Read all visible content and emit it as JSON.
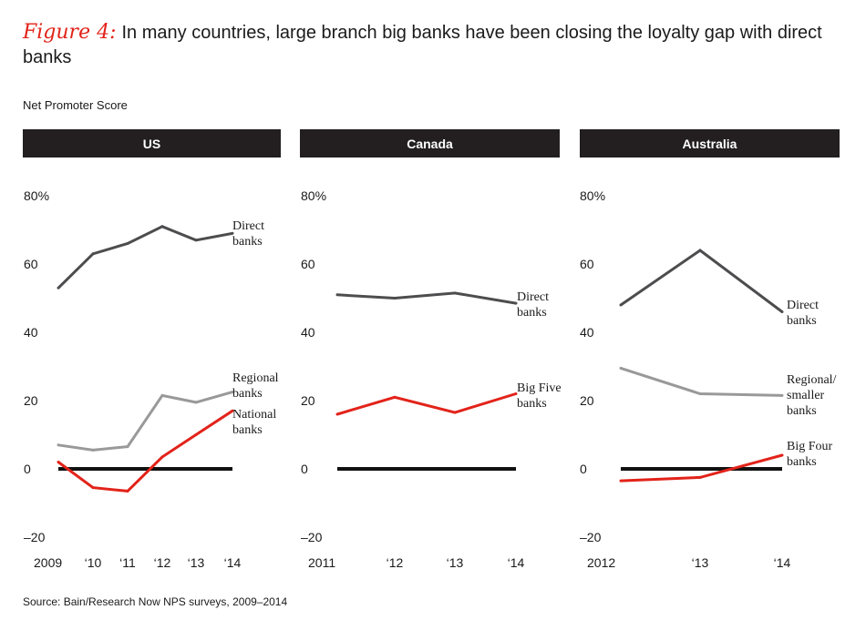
{
  "header": {
    "figure_label": "Figure 4:",
    "title": "In many countries, large branch big banks have been closing the loyalty gap with direct banks",
    "y_axis_label": "Net Promoter Score",
    "source": "Source: Bain/Research Now NPS surveys, 2009–2014"
  },
  "colors": {
    "direct": "#4d4d4f",
    "regional": "#999999",
    "big": "#e2231a",
    "zero_line": "#111111",
    "panel_header_bg": "#231f20"
  },
  "chart_data": [
    {
      "type": "line",
      "title": "US",
      "ylabel": "Net Promoter Score",
      "ylim": [
        -20,
        80
      ],
      "y_ticks": [
        "80%",
        "60",
        "40",
        "20",
        "0",
        "–20"
      ],
      "y_tick_values": [
        80,
        60,
        40,
        20,
        0,
        -20
      ],
      "x_labels": [
        "2009",
        "‘10",
        "‘11",
        "‘12",
        "‘13",
        "‘14"
      ],
      "x": [
        2009,
        2010,
        2011,
        2012,
        2013,
        2014
      ],
      "series": [
        {
          "name": "Direct banks",
          "label_lines": [
            "Direct",
            "banks"
          ],
          "color_key": "direct",
          "values": [
            53,
            63,
            66,
            71,
            67,
            69
          ]
        },
        {
          "name": "Regional banks",
          "label_lines": [
            "Regional",
            "banks"
          ],
          "color_key": "regional",
          "values": [
            7,
            5.5,
            6.5,
            21.5,
            19.5,
            22.5
          ]
        },
        {
          "name": "National banks",
          "label_lines": [
            "National",
            "banks"
          ],
          "color_key": "big",
          "values": [
            2,
            -5.5,
            -6.5,
            3.5,
            10,
            17
          ]
        }
      ]
    },
    {
      "type": "line",
      "title": "Canada",
      "ylabel": "Net Promoter Score",
      "ylim": [
        -20,
        80
      ],
      "y_ticks": [
        "80%",
        "60",
        "40",
        "20",
        "0",
        "–20"
      ],
      "y_tick_values": [
        80,
        60,
        40,
        20,
        0,
        -20
      ],
      "x_labels": [
        "2011",
        "‘12",
        "‘13",
        "‘14"
      ],
      "x": [
        2011,
        2012,
        2013,
        2014
      ],
      "series": [
        {
          "name": "Direct banks",
          "label_lines": [
            "Direct",
            "banks"
          ],
          "color_key": "direct",
          "values": [
            51,
            50,
            51.5,
            48.5
          ]
        },
        {
          "name": "Big Five banks",
          "label_lines": [
            "Big Five",
            "banks"
          ],
          "color_key": "big",
          "values": [
            16,
            21,
            16.5,
            22
          ]
        }
      ]
    },
    {
      "type": "line",
      "title": "Australia",
      "ylabel": "Net Promoter Score",
      "ylim": [
        -20,
        80
      ],
      "y_ticks": [
        "80%",
        "60",
        "40",
        "20",
        "0",
        "–20"
      ],
      "y_tick_values": [
        80,
        60,
        40,
        20,
        0,
        -20
      ],
      "x_labels": [
        "2012",
        "‘13",
        "‘14"
      ],
      "x": [
        2012,
        2013,
        2014
      ],
      "series": [
        {
          "name": "Direct banks",
          "label_lines": [
            "Direct",
            "banks"
          ],
          "color_key": "direct",
          "values": [
            48,
            64,
            46
          ]
        },
        {
          "name": "Regional/smaller banks",
          "label_lines": [
            "Regional/",
            "smaller",
            "banks"
          ],
          "color_key": "regional",
          "values": [
            29.5,
            22,
            21.5
          ]
        },
        {
          "name": "Big Four banks",
          "label_lines": [
            "Big Four",
            "banks"
          ],
          "color_key": "big",
          "values": [
            -3.5,
            -2.5,
            4
          ]
        }
      ]
    }
  ]
}
